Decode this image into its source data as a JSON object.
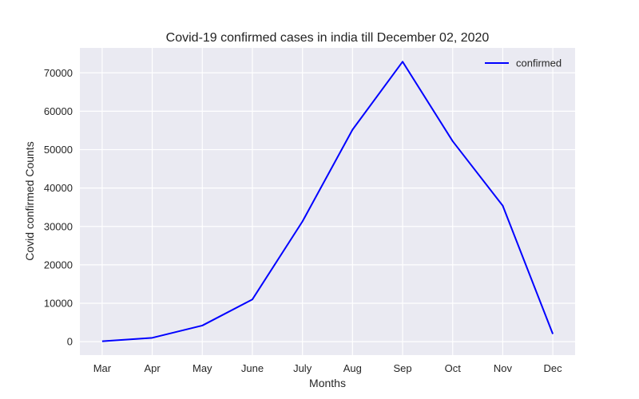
{
  "chart_data": {
    "type": "line",
    "title": "Covid-19 confirmed cases in india till December 02, 2020",
    "xlabel": "Months",
    "ylabel": "Covid  confirmed  Counts",
    "categories": [
      "Mar",
      "Apr",
      "May",
      "June",
      "July",
      "Aug",
      "Sep",
      "Oct",
      "Nov",
      "Dec"
    ],
    "series": [
      {
        "name": "confirmed",
        "color": "#0000ff",
        "values": [
          100,
          1000,
          4200,
          11000,
          31300,
          55200,
          72900,
          52200,
          35400,
          2000
        ]
      }
    ],
    "yticks": [
      0,
      10000,
      20000,
      30000,
      40000,
      50000,
      60000,
      70000
    ],
    "ylim": [
      -3500,
      76500
    ],
    "grid": true,
    "legend_position": "top-right",
    "background_color": "#eaeaf2",
    "grid_color": "#ffffff"
  }
}
